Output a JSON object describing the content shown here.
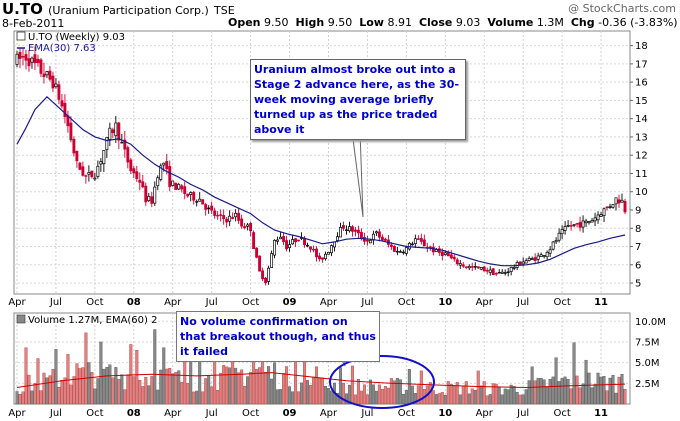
{
  "header": {
    "symbol": "U.TO",
    "company": "(Uranium Participation Corp.)",
    "exchange": "TSE",
    "date": "8-Feb-2011",
    "open_label": "Open",
    "open": "9.50",
    "high_label": "High",
    "high": "9.50",
    "low_label": "Low",
    "low": "8.91",
    "close_label": "Close",
    "close": "9.03",
    "volume_label": "Volume",
    "volume": "1.3M",
    "chg_label": "Chg",
    "chg": "-0.36 (-3.83%)",
    "watermark": "@ StockCharts.com"
  },
  "colors": {
    "up": "#000000",
    "down": "#cc0033",
    "ema": "#1a1a8c",
    "vol_up": "#888888",
    "vol_down": "#e08080",
    "vol_ema": "#cc0000",
    "annotation_text": "#0000cc",
    "ellipse": "#1010cc"
  },
  "annotations": {
    "stage2": "Uranium almost broke out into a Stage 2 advance here, as the 30-week moving average briefly turned up as the price traded above it",
    "volume": "No volume confirmation on that breakout though, and thus it failed"
  },
  "chart_data": [
    {
      "type": "candlestick",
      "legend": [
        "U.TO (Weekly) 9.03",
        "EMA(30) 7.63"
      ],
      "ylim": [
        4.4,
        18.8
      ],
      "y_ticks": [
        5,
        6,
        7,
        8,
        9,
        10,
        11,
        12,
        13,
        14,
        15,
        16,
        17,
        18
      ],
      "x_tick_labels": [
        "Apr",
        "Jul",
        "Oct",
        "08",
        "Apr",
        "Jul",
        "Oct",
        "09",
        "Apr",
        "Jul",
        "Oct",
        "10",
        "Apr",
        "Jul",
        "Oct",
        "11"
      ],
      "x_tick_positions": [
        0,
        13,
        26,
        39,
        52,
        65,
        78,
        91,
        104,
        117,
        130,
        143,
        156,
        169,
        182,
        195
      ],
      "weeks": 204,
      "price_path": [
        [
          0,
          17.2
        ],
        [
          3,
          17.4
        ],
        [
          8,
          16.6
        ],
        [
          12,
          16.0
        ],
        [
          14,
          15.2
        ],
        [
          17,
          13.6
        ],
        [
          20,
          11.5
        ],
        [
          23,
          10.8
        ],
        [
          26,
          11.0
        ],
        [
          28,
          11.8
        ],
        [
          31,
          13.2
        ],
        [
          33,
          13.6
        ],
        [
          35,
          12.6
        ],
        [
          38,
          11.2
        ],
        [
          41,
          10.6
        ],
        [
          43,
          9.6
        ],
        [
          45,
          9.5
        ],
        [
          47,
          11.0
        ],
        [
          49,
          11.6
        ],
        [
          51,
          10.5
        ],
        [
          54,
          10.2
        ],
        [
          57,
          9.8
        ],
        [
          61,
          9.6
        ],
        [
          64,
          9.0
        ],
        [
          67,
          8.6
        ],
        [
          70,
          8.5
        ],
        [
          73,
          8.7
        ],
        [
          75,
          8.2
        ],
        [
          78,
          8.0
        ],
        [
          79,
          7.0
        ],
        [
          81,
          5.6
        ],
        [
          83,
          5.1
        ],
        [
          84,
          5.8
        ],
        [
          86,
          7.3
        ],
        [
          88,
          7.6
        ],
        [
          90,
          7.0
        ],
        [
          94,
          7.5
        ],
        [
          98,
          7.0
        ],
        [
          101,
          6.2
        ],
        [
          104,
          6.8
        ],
        [
          107,
          7.7
        ],
        [
          109,
          8.1
        ],
        [
          112,
          7.9
        ],
        [
          115,
          7.5
        ],
        [
          117,
          7.3
        ],
        [
          120,
          7.7
        ],
        [
          124,
          7.1
        ],
        [
          127,
          6.7
        ],
        [
          130,
          6.9
        ],
        [
          133,
          7.4
        ],
        [
          136,
          7.1
        ],
        [
          140,
          6.7
        ],
        [
          143,
          6.6
        ],
        [
          146,
          6.2
        ],
        [
          150,
          5.9
        ],
        [
          154,
          5.8
        ],
        [
          157,
          5.7
        ],
        [
          160,
          5.5
        ],
        [
          163,
          5.6
        ],
        [
          166,
          5.9
        ],
        [
          169,
          6.2
        ],
        [
          172,
          6.3
        ],
        [
          175,
          6.5
        ],
        [
          178,
          6.9
        ],
        [
          181,
          7.6
        ],
        [
          184,
          8.1
        ],
        [
          187,
          8.2
        ],
        [
          190,
          8.3
        ],
        [
          193,
          8.6
        ],
        [
          195,
          8.9
        ],
        [
          197,
          9.1
        ],
        [
          200,
          9.6
        ],
        [
          202,
          9.5
        ],
        [
          203,
          9.03
        ]
      ],
      "ema_path": [
        [
          0,
          12.6
        ],
        [
          3,
          13.5
        ],
        [
          6,
          14.5
        ],
        [
          10,
          15.2
        ],
        [
          14,
          14.6
        ],
        [
          18,
          14.0
        ],
        [
          22,
          13.4
        ],
        [
          26,
          13.0
        ],
        [
          30,
          12.8
        ],
        [
          34,
          12.9
        ],
        [
          38,
          12.6
        ],
        [
          42,
          12.0
        ],
        [
          46,
          11.5
        ],
        [
          50,
          11.1
        ],
        [
          54,
          10.8
        ],
        [
          58,
          10.4
        ],
        [
          62,
          10.1
        ],
        [
          66,
          9.7
        ],
        [
          70,
          9.4
        ],
        [
          74,
          9.1
        ],
        [
          78,
          8.8
        ],
        [
          82,
          8.3
        ],
        [
          86,
          7.9
        ],
        [
          90,
          7.7
        ],
        [
          94,
          7.55
        ],
        [
          98,
          7.35
        ],
        [
          102,
          7.15
        ],
        [
          106,
          7.25
        ],
        [
          110,
          7.4
        ],
        [
          114,
          7.45
        ],
        [
          118,
          7.4
        ],
        [
          122,
          7.3
        ],
        [
          126,
          7.15
        ],
        [
          130,
          7.0
        ],
        [
          134,
          6.95
        ],
        [
          138,
          6.9
        ],
        [
          142,
          6.8
        ],
        [
          146,
          6.6
        ],
        [
          150,
          6.4
        ],
        [
          154,
          6.2
        ],
        [
          158,
          6.05
        ],
        [
          162,
          5.95
        ],
        [
          166,
          5.95
        ],
        [
          170,
          6.0
        ],
        [
          174,
          6.1
        ],
        [
          178,
          6.3
        ],
        [
          182,
          6.6
        ],
        [
          186,
          6.9
        ],
        [
          190,
          7.1
        ],
        [
          194,
          7.25
        ],
        [
          198,
          7.45
        ],
        [
          203,
          7.63
        ]
      ]
    },
    {
      "type": "bar",
      "legend": "Volume 1.27M, EMA(60) 2",
      "ylim": [
        0,
        11
      ],
      "y_ticks": [
        2.5,
        5.0,
        7.5,
        10.0
      ],
      "y_tick_labels": [
        "2.5M",
        "5.0M",
        "7.5M",
        "10.0M"
      ],
      "x_tick_labels": [
        "Apr",
        "Jul",
        "Oct",
        "08",
        "Apr",
        "Jul",
        "Oct",
        "09",
        "Apr",
        "Jul",
        "Oct",
        "10",
        "Apr",
        "Jul",
        "Oct",
        "11"
      ],
      "volume_path": [
        [
          0,
          2.4
        ],
        [
          10,
          3.0
        ],
        [
          20,
          4.2
        ],
        [
          30,
          4.0
        ],
        [
          40,
          3.6
        ],
        [
          50,
          3.6
        ],
        [
          60,
          3.0
        ],
        [
          70,
          3.6
        ],
        [
          80,
          4.6
        ],
        [
          90,
          3.4
        ],
        [
          100,
          2.6
        ],
        [
          110,
          2.4
        ],
        [
          120,
          2.3
        ],
        [
          130,
          2.4
        ],
        [
          140,
          2.1
        ],
        [
          150,
          2.2
        ],
        [
          160,
          2.0
        ],
        [
          170,
          2.1
        ],
        [
          180,
          3.0
        ],
        [
          190,
          3.1
        ],
        [
          203,
          2.9
        ]
      ],
      "ema_path": [
        [
          0,
          2.0
        ],
        [
          15,
          2.8
        ],
        [
          30,
          3.4
        ],
        [
          45,
          3.6
        ],
        [
          60,
          3.4
        ],
        [
          75,
          3.6
        ],
        [
          85,
          3.8
        ],
        [
          95,
          3.4
        ],
        [
          110,
          2.8
        ],
        [
          125,
          2.5
        ],
        [
          140,
          2.3
        ],
        [
          155,
          2.1
        ],
        [
          170,
          2.0
        ],
        [
          185,
          2.2
        ],
        [
          203,
          2.4
        ]
      ],
      "spikes": [
        [
          3,
          6.8
        ],
        [
          7,
          5.5
        ],
        [
          13,
          6.6
        ],
        [
          17,
          6.0
        ],
        [
          23,
          8.6
        ],
        [
          28,
          7.5
        ],
        [
          38,
          7.2
        ],
        [
          40,
          6.5
        ],
        [
          46,
          9.0
        ],
        [
          49,
          6.8
        ],
        [
          56,
          6.0
        ],
        [
          58,
          7.2
        ],
        [
          61,
          6.8
        ],
        [
          66,
          5.8
        ],
        [
          72,
          7.6
        ],
        [
          79,
          8.2
        ],
        [
          82,
          6.6
        ],
        [
          86,
          5.0
        ],
        [
          93,
          6.2
        ],
        [
          96,
          5.8
        ],
        [
          100,
          4.5
        ],
        [
          108,
          4.4
        ],
        [
          112,
          4.6
        ],
        [
          131,
          4.2
        ],
        [
          135,
          4.0
        ],
        [
          154,
          4.0
        ],
        [
          172,
          4.5
        ],
        [
          180,
          5.6
        ],
        [
          186,
          7.4
        ],
        [
          190,
          5.3
        ],
        [
          202,
          3.6
        ]
      ]
    }
  ]
}
